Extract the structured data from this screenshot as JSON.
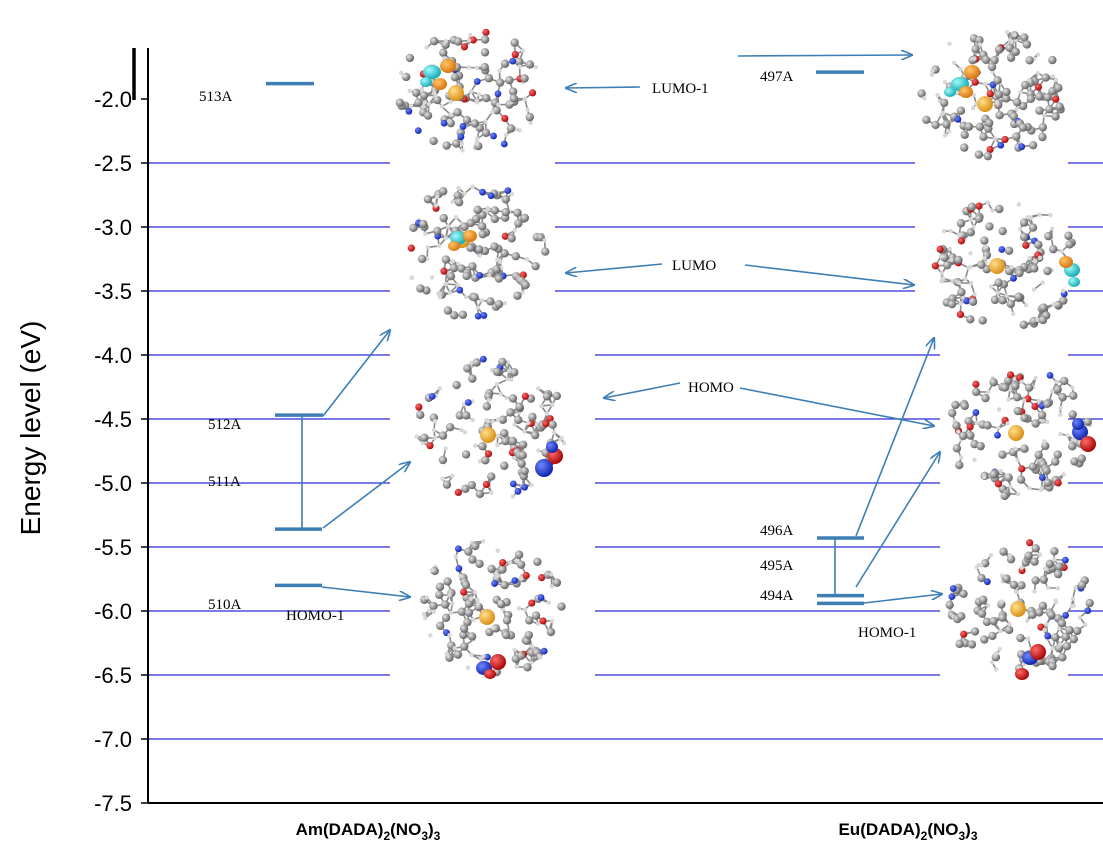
{
  "chart_data": {
    "type": "energy-level-diagram",
    "ylabel": "Energy level (eV)",
    "ylim": [
      -7.5,
      -1.7
    ],
    "yticks": [
      -2.0,
      -2.5,
      -3.0,
      -3.5,
      -4.0,
      -4.5,
      -5.0,
      -5.5,
      -6.0,
      -6.5,
      -7.0,
      -7.5
    ],
    "ytick_labels": [
      "-2.0",
      "-2.5",
      "-3.0",
      "-3.5",
      "-4.0",
      "-4.5",
      "-5.0",
      "-5.5",
      "-6.0",
      "-6.5",
      "-7.0",
      "-7.5"
    ],
    "gridlines": true,
    "series": [
      {
        "name": "Am(DADA)2(NO3)3",
        "label_main": "Am(DADA)",
        "label_sub1": "2",
        "label_mid": "(NO",
        "label_sub2": "3",
        "label_close": ")",
        "label_sub3": "3",
        "levels": [
          {
            "label": "513A",
            "energy": -1.88
          },
          {
            "label": "512A",
            "energy": -4.47
          },
          {
            "label": "511A",
            "energy": -5.36
          },
          {
            "label": "510A",
            "energy": -5.8
          }
        ]
      },
      {
        "name": "Eu(DADA)2(NO3)3",
        "label_main": "Eu(DADA)",
        "label_sub1": "2",
        "label_mid": "(NO",
        "label_sub2": "3",
        "label_close": ")",
        "label_sub3": "3",
        "levels": [
          {
            "label": "497A",
            "energy": -1.79
          },
          {
            "label": "496A",
            "energy": -5.43
          },
          {
            "label": "495A",
            "energy": -5.88
          },
          {
            "label": "494A",
            "energy": -5.94
          }
        ]
      }
    ],
    "orbital_labels": [
      "LUMO-1",
      "LUMO",
      "HOMO",
      "HOMO-1",
      "HOMO-1"
    ]
  }
}
